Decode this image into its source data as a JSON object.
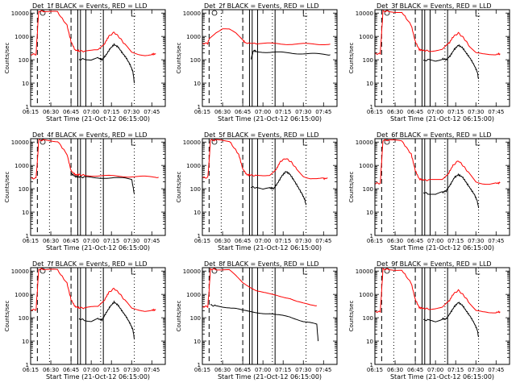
{
  "chart_data": {
    "type": "line",
    "shared": {
      "xlabel": "Start Time (21-Oct-12 06:15:00)",
      "ylabel": "Counts/sec",
      "x_ticks": [
        "06:15",
        "06:30",
        "06:45",
        "07:00",
        "07:15",
        "07:30",
        "07:45"
      ],
      "x_tick_minutes": [
        0,
        15,
        30,
        45,
        60,
        75,
        90
      ],
      "xlim_minutes": [
        0,
        100
      ],
      "y_scale": "log",
      "y_ticks": [
        "1",
        "10",
        "100",
        "1000",
        "10000"
      ],
      "y_tick_values": [
        1,
        10,
        100,
        1000,
        10000
      ],
      "ylim": [
        1,
        14000
      ],
      "dashed_lines_minutes": [
        5,
        30
      ],
      "dotted_lines_minutes": [
        14,
        52,
        77
      ],
      "solid_lines_minutes": [
        35,
        37,
        41,
        54
      ],
      "marker_minutes": [
        9,
        75
      ],
      "colors": {
        "events": "#000000",
        "lld": "#ff0000"
      }
    },
    "panels": [
      {
        "title": "Det_1f BLACK = Events, RED = LLD",
        "series": [
          {
            "name": "LLD",
            "color": "#ff0000",
            "x": [
              0,
              4,
              5,
              6,
              10,
              20,
              27,
              30,
              33,
              36,
              40,
              45,
              50,
              55,
              58,
              62,
              66,
              70,
              75,
              80,
              85,
              90,
              93
            ],
            "y": [
              170,
              170,
              1500,
              12000,
              12000,
              11000,
              3000,
              600,
              260,
              240,
              230,
              240,
              260,
              500,
              1000,
              1500,
              900,
              450,
              200,
              170,
              160,
              170,
              180
            ]
          },
          {
            "name": "Events",
            "color": "#000000",
            "x": [
              36,
              40,
              45,
              50,
              53,
              56,
              59,
              62,
              65,
              68,
              71,
              74,
              76,
              77
            ],
            "y": [
              100,
              110,
              100,
              120,
              100,
              160,
              300,
              450,
              350,
              200,
              120,
              60,
              30,
              10
            ]
          }
        ]
      },
      {
        "title": "Det_2f BLACK = Events, RED = LLD",
        "series": [
          {
            "name": "LLD",
            "color": "#ff0000",
            "x": [
              0,
              4,
              5,
              10,
              15,
              20,
              25,
              30,
              32,
              40,
              50,
              60,
              70,
              80,
              90,
              95
            ],
            "y": [
              500,
              500,
              800,
              1500,
              2200,
              2000,
              1300,
              700,
              520,
              500,
              490,
              480,
              470,
              470,
              470,
              470
            ]
          },
          {
            "name": "Events",
            "color": "#000000",
            "x": [
              36,
              38,
              40,
              45,
              50,
              60,
              70,
              80,
              90,
              95
            ],
            "y": [
              100,
              250,
              230,
              220,
              210,
              200,
              190,
              180,
              170,
              165
            ]
          }
        ]
      },
      {
        "title": "Det_3f BLACK = Events, RED = LLD",
        "series": [
          {
            "name": "LLD",
            "color": "#ff0000",
            "x": [
              0,
              4,
              5,
              6,
              10,
              20,
              27,
              30,
              33,
              36,
              40,
              45,
              50,
              55,
              58,
              62,
              66,
              70,
              75,
              80,
              85,
              90,
              93
            ],
            "y": [
              180,
              180,
              1500,
              12000,
              12000,
              11000,
              3000,
              600,
              270,
              250,
              240,
              250,
              270,
              500,
              950,
              1400,
              850,
              400,
              200,
              170,
              160,
              170,
              180
            ]
          },
          {
            "name": "Events",
            "color": "#000000",
            "x": [
              36,
              40,
              45,
              50,
              53,
              56,
              59,
              62,
              65,
              68,
              71,
              74,
              76,
              77
            ],
            "y": [
              90,
              100,
              90,
              110,
              100,
              150,
              280,
              420,
              330,
              190,
              110,
              55,
              30,
              15
            ]
          }
        ]
      },
      {
        "title": "Det_4f BLACK = Events, RED = LLD",
        "series": [
          {
            "name": "LLD",
            "color": "#ff0000",
            "x": [
              0,
              4,
              5,
              6,
              10,
              20,
              27,
              30,
              33,
              36,
              40,
              50,
              60,
              70,
              80,
              90,
              95
            ],
            "y": [
              280,
              280,
              1500,
              12000,
              12000,
              11000,
              3000,
              600,
              400,
              400,
              380,
              360,
              350,
              340,
              330,
              320,
              310
            ]
          },
          {
            "name": "Events",
            "color": "#000000",
            "x": [
              30,
              33,
              36,
              40,
              50,
              60,
              70,
              75,
              77
            ],
            "y": [
              450,
              340,
              320,
              310,
              300,
              290,
              280,
              260,
              60
            ]
          }
        ]
      },
      {
        "title": "Det_5f BLACK = Events, RED = LLD",
        "series": [
          {
            "name": "LLD",
            "color": "#ff0000",
            "x": [
              0,
              4,
              5,
              6,
              10,
              20,
              27,
              30,
              33,
              36,
              40,
              45,
              50,
              55,
              58,
              62,
              66,
              70,
              75,
              80,
              85,
              90,
              93
            ],
            "y": [
              300,
              300,
              1500,
              12000,
              12000,
              11000,
              3000,
              700,
              400,
              380,
              360,
              370,
              400,
              700,
              1500,
              2000,
              1400,
              700,
              350,
              280,
              260,
              270,
              280
            ]
          },
          {
            "name": "Events",
            "color": "#000000",
            "x": [
              36,
              40,
              45,
              50,
              53,
              56,
              59,
              62,
              65,
              68,
              71,
              74,
              76,
              77
            ],
            "y": [
              120,
              110,
              90,
              110,
              100,
              180,
              350,
              550,
              420,
              230,
              120,
              60,
              35,
              20
            ]
          }
        ]
      },
      {
        "title": "Det_6f BLACK = Events, RED = LLD",
        "series": [
          {
            "name": "LLD",
            "color": "#ff0000",
            "x": [
              0,
              4,
              5,
              6,
              10,
              20,
              27,
              30,
              33,
              36,
              40,
              45,
              50,
              55,
              58,
              62,
              66,
              70,
              75,
              80,
              85,
              90,
              93
            ],
            "y": [
              170,
              170,
              1500,
              12000,
              12000,
              11000,
              3000,
              600,
              260,
              240,
              230,
              240,
              260,
              500,
              1000,
              1600,
              900,
              450,
              200,
              170,
              160,
              170,
              180
            ]
          },
          {
            "name": "Events",
            "color": "#000000",
            "x": [
              36,
              40,
              45,
              50,
              53,
              56,
              59,
              62,
              65,
              68,
              71,
              74,
              76,
              77
            ],
            "y": [
              70,
              60,
              55,
              70,
              80,
              150,
              300,
              400,
              320,
              180,
              100,
              55,
              30,
              15
            ]
          }
        ]
      },
      {
        "title": "Det_7f BLACK = Events, RED = LLD",
        "series": [
          {
            "name": "LLD",
            "color": "#ff0000",
            "x": [
              0,
              4,
              5,
              6,
              10,
              20,
              27,
              30,
              33,
              36,
              40,
              45,
              50,
              55,
              58,
              62,
              66,
              70,
              75,
              80,
              85,
              90,
              93
            ],
            "y": [
              220,
              220,
              1500,
              12000,
              12000,
              11000,
              3000,
              600,
              300,
              270,
              260,
              280,
              300,
              600,
              1200,
              1800,
              1100,
              550,
              250,
              220,
              200,
              210,
              220
            ]
          },
          {
            "name": "Events",
            "color": "#000000",
            "x": [
              36,
              40,
              45,
              50,
              53,
              56,
              59,
              62,
              65,
              68,
              71,
              74,
              76,
              77
            ],
            "y": [
              90,
              80,
              70,
              90,
              80,
              160,
              300,
              470,
              340,
              190,
              110,
              55,
              30,
              12
            ]
          }
        ]
      },
      {
        "title": "Det_8f BLACK = Events, RED = LLD",
        "series": [
          {
            "name": "LLD",
            "color": "#ff0000",
            "x": [
              0,
              4,
              5,
              6,
              10,
              20,
              25,
              30,
              35,
              40,
              45,
              50,
              55,
              60,
              65,
              70,
              75,
              80,
              85
            ],
            "y": [
              300,
              300,
              1500,
              12000,
              12000,
              11000,
              6000,
              3200,
              2200,
              1500,
              1200,
              1000,
              900,
              800,
              700,
              500,
              400,
              350,
              330
            ]
          },
          {
            "name": "Events",
            "color": "#000000",
            "x": [
              6,
              10,
              15,
              20,
              25,
              30,
              35,
              40,
              45,
              50,
              55,
              60,
              65,
              70,
              75,
              80,
              85,
              86
            ],
            "y": [
              350,
              320,
              300,
              280,
              250,
              200,
              180,
              170,
              160,
              150,
              130,
              120,
              110,
              90,
              70,
              60,
              50,
              10
            ]
          }
        ]
      },
      {
        "title": "Det_9f BLACK = Events, RED = LLD",
        "series": [
          {
            "name": "LLD",
            "color": "#ff0000",
            "x": [
              0,
              4,
              5,
              6,
              10,
              20,
              27,
              30,
              33,
              36,
              40,
              45,
              50,
              55,
              58,
              62,
              66,
              70,
              75,
              80,
              85,
              90,
              93
            ],
            "y": [
              180,
              180,
              1500,
              12000,
              12000,
              11000,
              3000,
              600,
              270,
              250,
              240,
              250,
              270,
              500,
              1000,
              1500,
              900,
              450,
              200,
              170,
              160,
              170,
              180
            ]
          },
          {
            "name": "Events",
            "color": "#000000",
            "x": [
              36,
              40,
              45,
              50,
              53,
              56,
              59,
              62,
              65,
              68,
              71,
              74,
              76,
              77
            ],
            "y": [
              80,
              80,
              70,
              90,
              90,
              160,
              300,
              450,
              340,
              190,
              110,
              55,
              30,
              15
            ]
          }
        ]
      }
    ]
  }
}
